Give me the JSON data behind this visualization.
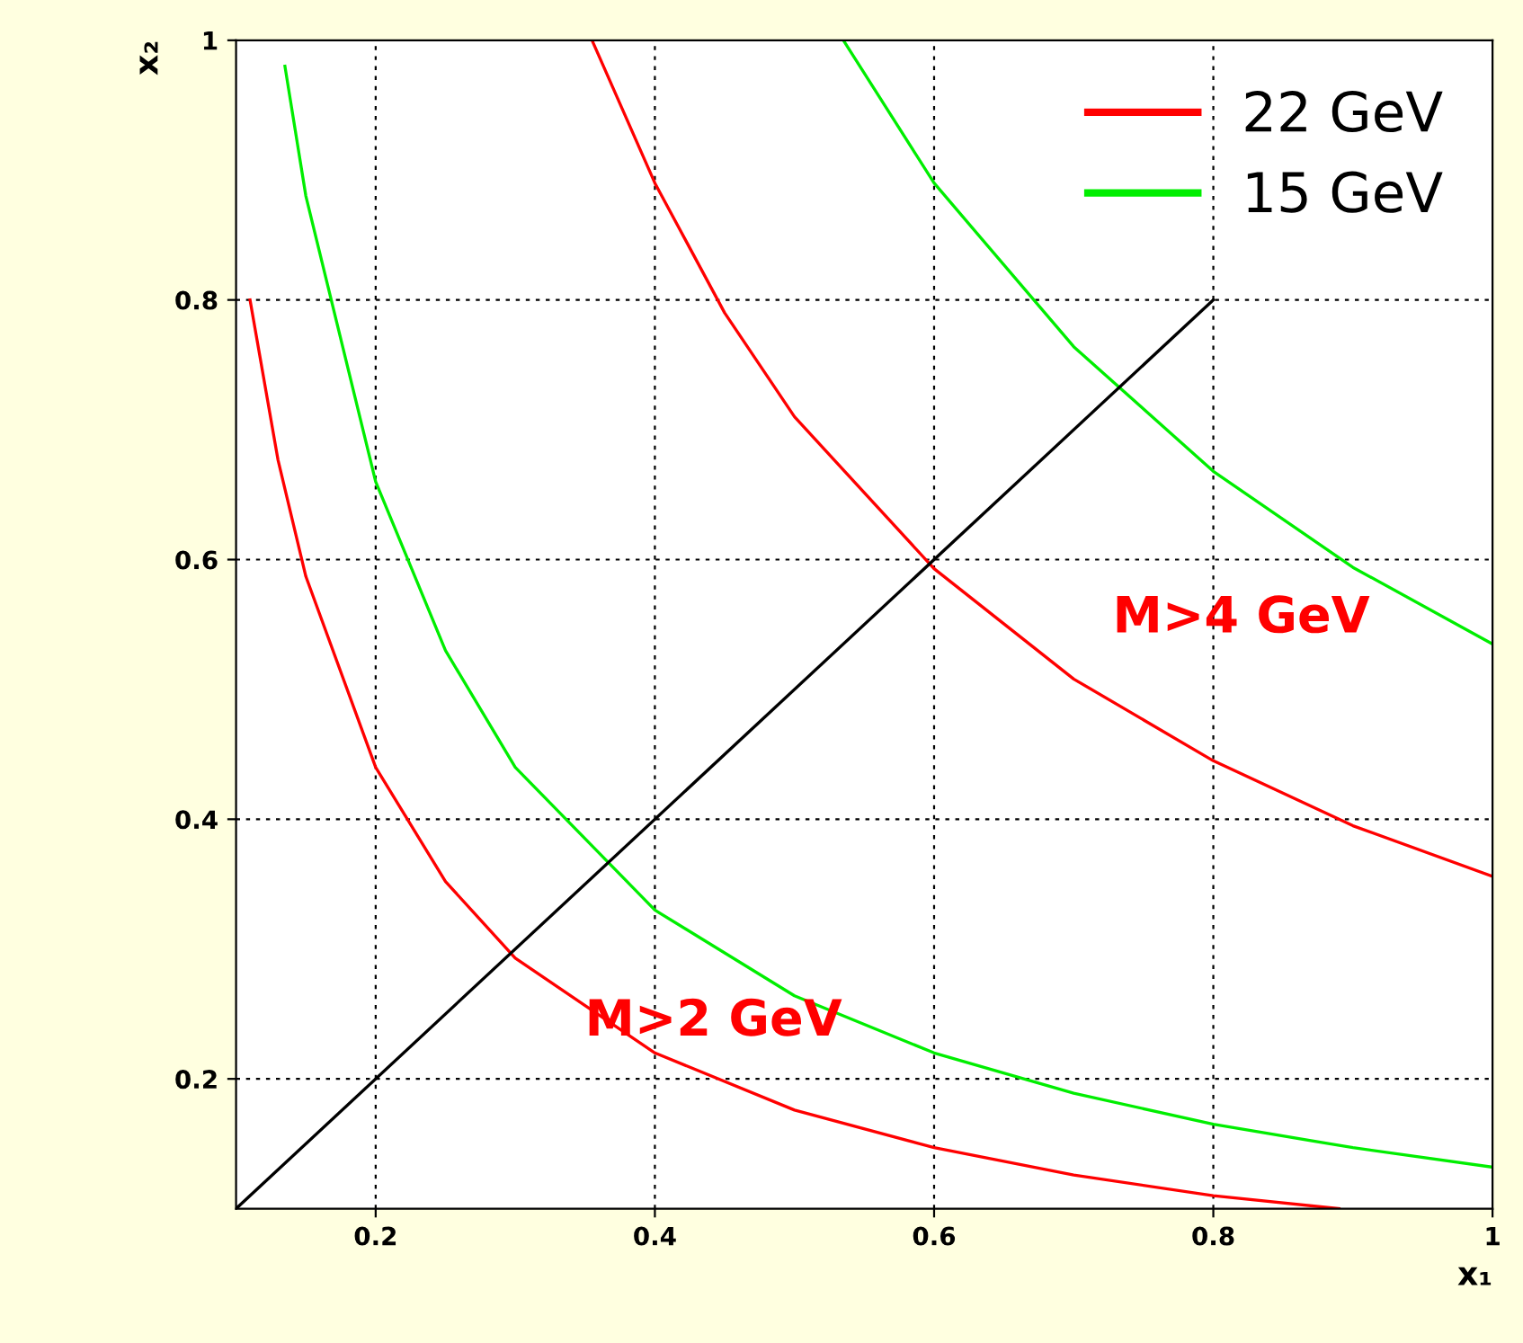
{
  "chart_data": {
    "type": "line",
    "xlabel": "x₁",
    "ylabel": "x₂",
    "xlim": [
      0.1,
      1
    ],
    "ylim": [
      0.1,
      1
    ],
    "xticks": [
      0.2,
      0.4,
      0.6,
      0.8,
      1
    ],
    "yticks": [
      0.2,
      0.4,
      0.6,
      0.8,
      1
    ],
    "grid": true,
    "legend": "top right",
    "marker": "none",
    "line_style": "solid",
    "series": [
      {
        "name": "22 GeV",
        "color": "#ff0000",
        "x": [
          0.11,
          0.13,
          0.15,
          0.2,
          0.25,
          0.3,
          0.4,
          0.5,
          0.6,
          0.7,
          0.8,
          0.89
        ],
        "values": [
          0.8,
          0.677,
          0.587,
          0.44,
          0.352,
          0.293,
          0.22,
          0.176,
          0.147,
          0.126,
          0.11,
          0.1
        ]
      },
      {
        "name": "15 GeV",
        "color": "#00ee00",
        "x": [
          0.135,
          0.15,
          0.2,
          0.25,
          0.3,
          0.4,
          0.5,
          0.6,
          0.7,
          0.8,
          0.9,
          1.0
        ],
        "values": [
          0.98,
          0.88,
          0.66,
          0.53,
          0.44,
          0.33,
          0.264,
          0.22,
          0.189,
          0.165,
          0.147,
          0.132
        ]
      },
      {
        "color": "#ff0000",
        "x": [
          0.355,
          0.4,
          0.45,
          0.5,
          0.6,
          0.7,
          0.8,
          0.9,
          1.0
        ],
        "values": [
          1.0,
          0.89,
          0.79,
          0.71,
          0.593,
          0.508,
          0.445,
          0.395,
          0.356
        ]
      },
      {
        "color": "#00ee00",
        "x": [
          0.535,
          0.6,
          0.7,
          0.8,
          0.9,
          1.0
        ],
        "values": [
          1.0,
          0.89,
          0.764,
          0.668,
          0.594,
          0.535
        ]
      },
      {
        "color": "#000000",
        "x": [
          0.1,
          0.8
        ],
        "values": [
          0.1,
          0.8
        ]
      }
    ],
    "annotations": [
      "M>2 GeV",
      "M>4 GeV"
    ]
  }
}
